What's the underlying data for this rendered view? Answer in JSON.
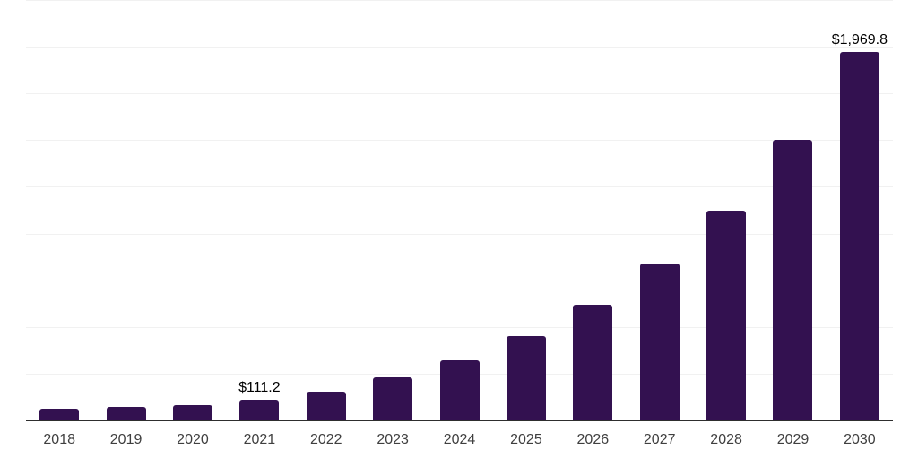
{
  "chart_data": {
    "type": "bar",
    "categories": [
      "2018",
      "2019",
      "2020",
      "2021",
      "2022",
      "2023",
      "2024",
      "2025",
      "2026",
      "2027",
      "2028",
      "2029",
      "2030"
    ],
    "values": [
      62,
      72,
      82,
      111.2,
      155,
      228,
      320,
      450,
      618,
      840,
      1125,
      1500,
      1969.8
    ],
    "value_labels": [
      {
        "category": "2021",
        "text": "$111.2"
      },
      {
        "category": "2030",
        "text": "$1,969.8"
      }
    ],
    "ylim": [
      0,
      2250
    ],
    "gridline_step": 250,
    "grid": true,
    "y_tick_labels_visible": false,
    "legend_position": "none"
  },
  "colors": {
    "bar": "#331150",
    "gridline": "#f1f1f1",
    "axis": "#2e2e2e",
    "tick_label": "#3f3f3f",
    "value_label": "#000000",
    "background": "#ffffff"
  }
}
